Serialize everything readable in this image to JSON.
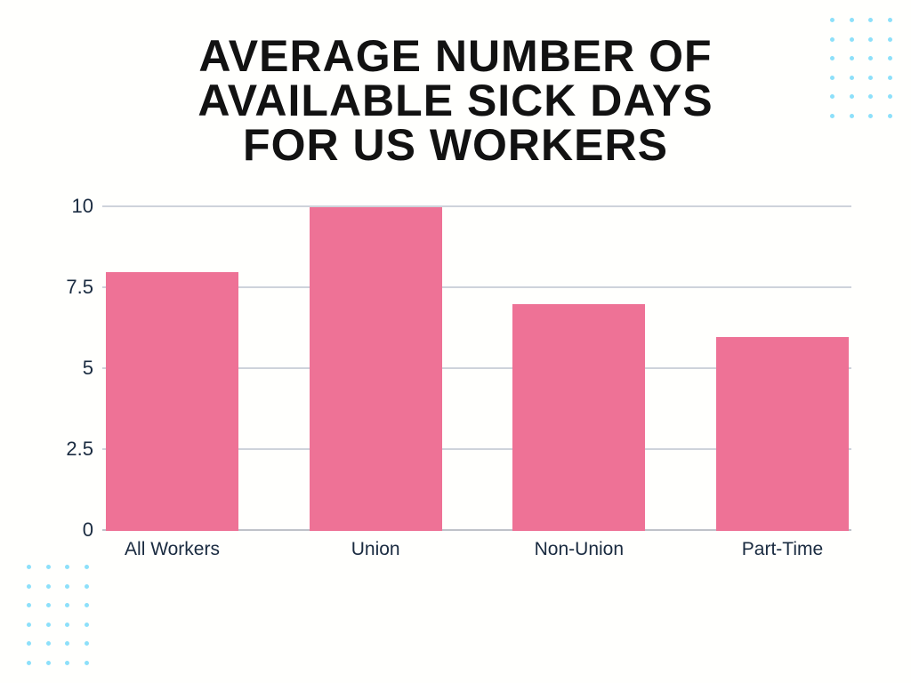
{
  "page": {
    "background": "#fffffd"
  },
  "header": {
    "lines": [
      "AVERAGE NUMBER OF",
      "AVAILABLE SICK DAYS",
      "FOR US WORKERS"
    ],
    "color": "#121212"
  },
  "chart_data": {
    "type": "bar",
    "title": "AVERAGE NUMBER OF AVAILABLE SICK DAYS FOR US WORKERS",
    "categories": [
      "All Workers",
      "Union",
      "Non-Union",
      "Part-Time"
    ],
    "values": [
      8,
      10,
      7,
      6
    ],
    "xlabel": "",
    "ylabel": "",
    "ylim": [
      0,
      10
    ],
    "yticks": [
      "10",
      "7.5",
      "5",
      "2.5",
      "0"
    ],
    "ytick_values": [
      10,
      7.5,
      5,
      2.5,
      0
    ],
    "grid": true,
    "legend_position": "none",
    "bar_color": "#ee7296",
    "gridline_color": "#ced3db",
    "baseline_color": "#bfc2c8",
    "axis_label_color": "#1a2b40"
  },
  "decor": {
    "dot_color": "#8de0fa",
    "dot_grids": [
      {
        "corner": "top-right",
        "rows": 6,
        "cols": 4
      },
      {
        "corner": "bottom-left",
        "rows": 6,
        "cols": 4
      }
    ]
  }
}
